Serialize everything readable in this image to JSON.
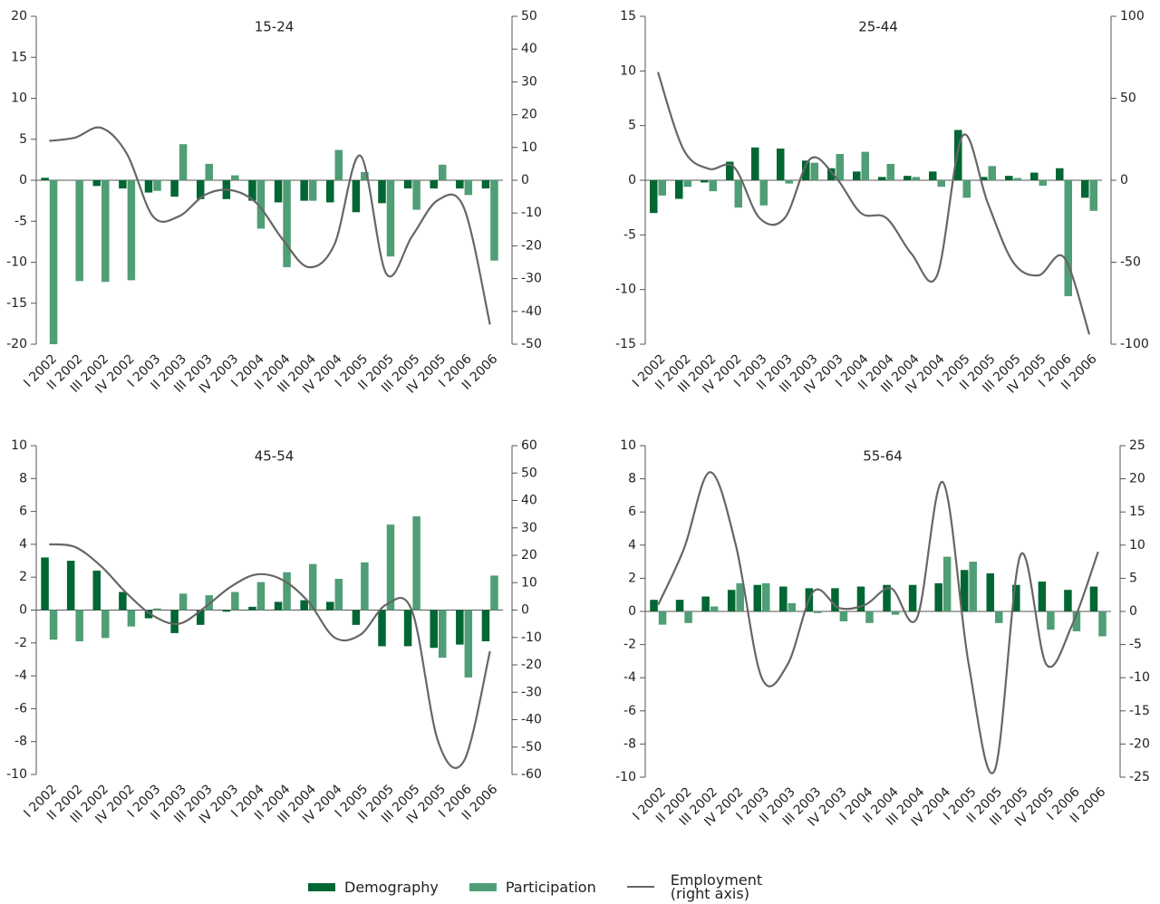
{
  "chart_data": [
    {
      "type": "bar",
      "title": "15-24",
      "categories": [
        "I 2002",
        "II 2002",
        "III 2002",
        "IV 2002",
        "I 2003",
        "II 2003",
        "III 2003",
        "IV 2003",
        "I 2004",
        "II 2004",
        "III 2004",
        "IV 2004",
        "I 2005",
        "II 2005",
        "III 2005",
        "IV 2005",
        "I 2006",
        "II 2006"
      ],
      "series": [
        {
          "name": "Demography",
          "color": "#006633",
          "values": [
            0.3,
            0,
            -0.7,
            -1,
            -1.5,
            -2,
            -2.3,
            -2.3,
            -2.5,
            -2.7,
            -2.5,
            -2.7,
            -3.9,
            -2.8,
            -1,
            -1,
            -1,
            -1
          ]
        },
        {
          "name": "Participation",
          "color": "#4f9e76",
          "values": [
            -20,
            -12.3,
            -12.4,
            -12.2,
            -1.3,
            4.4,
            2,
            0.6,
            -5.9,
            -10.6,
            -2.5,
            3.7,
            1,
            -9.3,
            -3.6,
            1.9,
            -1.8,
            -9.8
          ]
        },
        {
          "name": "Employment (right axis)",
          "color": "#666666",
          "axis": "y2",
          "values": [
            12,
            13,
            16,
            8,
            -11,
            -11,
            -4.5,
            -3,
            -7,
            -18,
            -26.5,
            -19.6,
            7.5,
            -28.5,
            -17,
            -6,
            -8.5,
            -44
          ]
        }
      ],
      "ylim": [
        -20,
        20
      ],
      "yticks": [
        -20,
        -15,
        -10,
        -5,
        0,
        5,
        10,
        15,
        20
      ],
      "y2lim": [
        -50,
        50
      ],
      "y2ticks": [
        -50,
        -40,
        -30,
        -20,
        -10,
        0,
        10,
        20,
        30,
        40,
        50
      ]
    },
    {
      "type": "bar",
      "title": "25-44",
      "categories": [
        "I 2002",
        "II 2002",
        "III 2002",
        "IV 2002",
        "I 2003",
        "II 2003",
        "III 2003",
        "IV 2003",
        "I 2004",
        "II 2004",
        "III 2004",
        "IV 2004",
        "I 2005",
        "II 2005",
        "III 2005",
        "IV 2005",
        "I 2006",
        "II 2006"
      ],
      "series": [
        {
          "name": "Demography",
          "color": "#006633",
          "values": [
            -3,
            -1.7,
            -0.2,
            1.7,
            3,
            2.9,
            1.8,
            1.1,
            0.8,
            0.3,
            0.4,
            0.8,
            4.6,
            0.3,
            0.4,
            0.7,
            1.1,
            -1.6
          ]
        },
        {
          "name": "Participation",
          "color": "#4f9e76",
          "values": [
            -1.4,
            -0.6,
            -1,
            -2.5,
            -2.3,
            -0.3,
            1.6,
            2.4,
            2.6,
            1.5,
            0.3,
            -0.6,
            -1.6,
            1.3,
            0.2,
            -0.5,
            -10.6,
            -2.8
          ]
        },
        {
          "name": "Employment (right axis)",
          "color": "#666666",
          "axis": "y2",
          "values": [
            66,
            19,
            7,
            8,
            -23,
            -23,
            13,
            2,
            -20,
            -23,
            -45,
            -58,
            27,
            -14,
            -50,
            -58,
            -47,
            -94
          ]
        }
      ],
      "ylim": [
        -15,
        15
      ],
      "yticks": [
        -15,
        -10,
        -5,
        0,
        5,
        10,
        15
      ],
      "y2lim": [
        -100,
        100
      ],
      "y2ticks": [
        -100,
        -50,
        0,
        50,
        100
      ]
    },
    {
      "type": "bar",
      "title": "45-54",
      "categories": [
        "I 2002",
        "II 2002",
        "III 2002",
        "IV 2002",
        "I 2003",
        "II 2003",
        "III 2003",
        "IV 2003",
        "I 2004",
        "II 2004",
        "III 2004",
        "IV 2004",
        "I 2005",
        "II 2005",
        "III 2005",
        "IV 2005",
        "I 2006",
        "II 2006"
      ],
      "series": [
        {
          "name": "Demography",
          "color": "#006633",
          "values": [
            3.2,
            3,
            2.4,
            1.1,
            -0.5,
            -1.4,
            -0.9,
            -0.1,
            0.2,
            0.5,
            0.6,
            0.5,
            -0.9,
            -2.2,
            -2.2,
            -2.3,
            -2.1,
            -1.9
          ]
        },
        {
          "name": "Participation",
          "color": "#4f9e76",
          "values": [
            -1.8,
            -1.9,
            -1.7,
            -1,
            0.1,
            1,
            0.9,
            1.1,
            1.7,
            2.3,
            2.8,
            1.9,
            2.9,
            5.2,
            5.7,
            -2.9,
            -4.1,
            2.1
          ]
        },
        {
          "name": "Employment (right axis)",
          "color": "#666666",
          "axis": "y2",
          "values": [
            24,
            23,
            16,
            6,
            -2,
            -5,
            1,
            8.5,
            13,
            11,
            3,
            -10,
            -9,
            2,
            -0.5,
            -48,
            -55,
            -15
          ]
        }
      ],
      "ylim": [
        -10,
        10
      ],
      "yticks": [
        -10,
        -8,
        -6,
        -4,
        -2,
        0,
        2,
        4,
        6,
        8,
        10
      ],
      "y2lim": [
        -60,
        60
      ],
      "y2ticks": [
        -60,
        -50,
        -40,
        -30,
        -20,
        -10,
        0,
        10,
        20,
        30,
        40,
        50,
        60
      ]
    },
    {
      "type": "bar",
      "title": "55-64",
      "categories": [
        "I 2002",
        "II 2002",
        "III 2002",
        "IV 2002",
        "I 2003",
        "II 2003",
        "III 2003",
        "IV 2003",
        "I 2004",
        "II 2004",
        "III 2004",
        "IV 2004",
        "I 2005",
        "II 2005",
        "III 2005",
        "IV 2005",
        "I 2006",
        "II 2006"
      ],
      "series": [
        {
          "name": "Demography",
          "color": "#006633",
          "values": [
            0.7,
            0.7,
            0.9,
            1.3,
            1.6,
            1.5,
            1.4,
            1.4,
            1.5,
            1.6,
            1.6,
            1.7,
            2.5,
            2.3,
            1.6,
            1.8,
            1.3,
            1.5
          ]
        },
        {
          "name": "Participation",
          "color": "#4f9e76",
          "values": [
            -0.8,
            -0.7,
            0.3,
            1.7,
            1.7,
            0.5,
            -0.1,
            -0.6,
            -0.7,
            -0.2,
            0,
            3.3,
            3,
            -0.7,
            0,
            -1.1,
            -1.2,
            -1.5
          ]
        },
        {
          "name": "Employment (right axis)",
          "color": "#666666",
          "axis": "y2",
          "values": [
            1,
            9.5,
            21,
            10,
            -10,
            -8,
            3,
            0.5,
            1,
            3.5,
            -1,
            19.5,
            -8,
            -24,
            8.5,
            -8,
            -2,
            9
          ]
        }
      ],
      "ylim": [
        -10,
        10
      ],
      "yticks": [
        -10,
        -8,
        -6,
        -4,
        -2,
        0,
        2,
        4,
        6,
        8,
        10
      ],
      "y2lim": [
        -25,
        25
      ],
      "y2ticks": [
        -25,
        -20,
        -15,
        -10,
        -5,
        0,
        5,
        10,
        15,
        20,
        25
      ]
    }
  ]
}
